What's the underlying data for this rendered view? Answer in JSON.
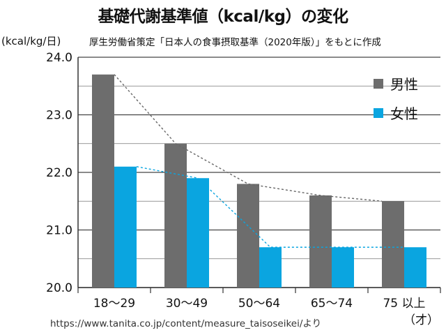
{
  "header": {
    "title": "基礎代謝基準値（kcal/kg）の変化",
    "unit": "(kcal/kg/日)",
    "source": "厚生労働省策定「日本人の食事摂取基準（2020年版）」をもとに作成"
  },
  "footer": {
    "url": "https://www.tanita.co.jp/content/measure_taisoseikei/より"
  },
  "chart_data": {
    "type": "bar",
    "categories": [
      "18〜29",
      "30〜49",
      "50〜64",
      "65〜74",
      "75 以上"
    ],
    "category_suffix": "（才）",
    "series": [
      {
        "name": "男性",
        "values": [
          23.7,
          22.5,
          21.8,
          21.6,
          21.5
        ],
        "color": "#6d6d6d"
      },
      {
        "name": "女性",
        "values": [
          22.1,
          21.9,
          20.7,
          20.7,
          20.7
        ],
        "color": "#0aa5e0"
      }
    ],
    "ylim": [
      20.0,
      24.0
    ],
    "yticks": [
      "20.0",
      "21.0",
      "22.0",
      "23.0",
      "24.0"
    ],
    "grid": true,
    "legend": "top-right",
    "trend_lines": "dashed"
  }
}
